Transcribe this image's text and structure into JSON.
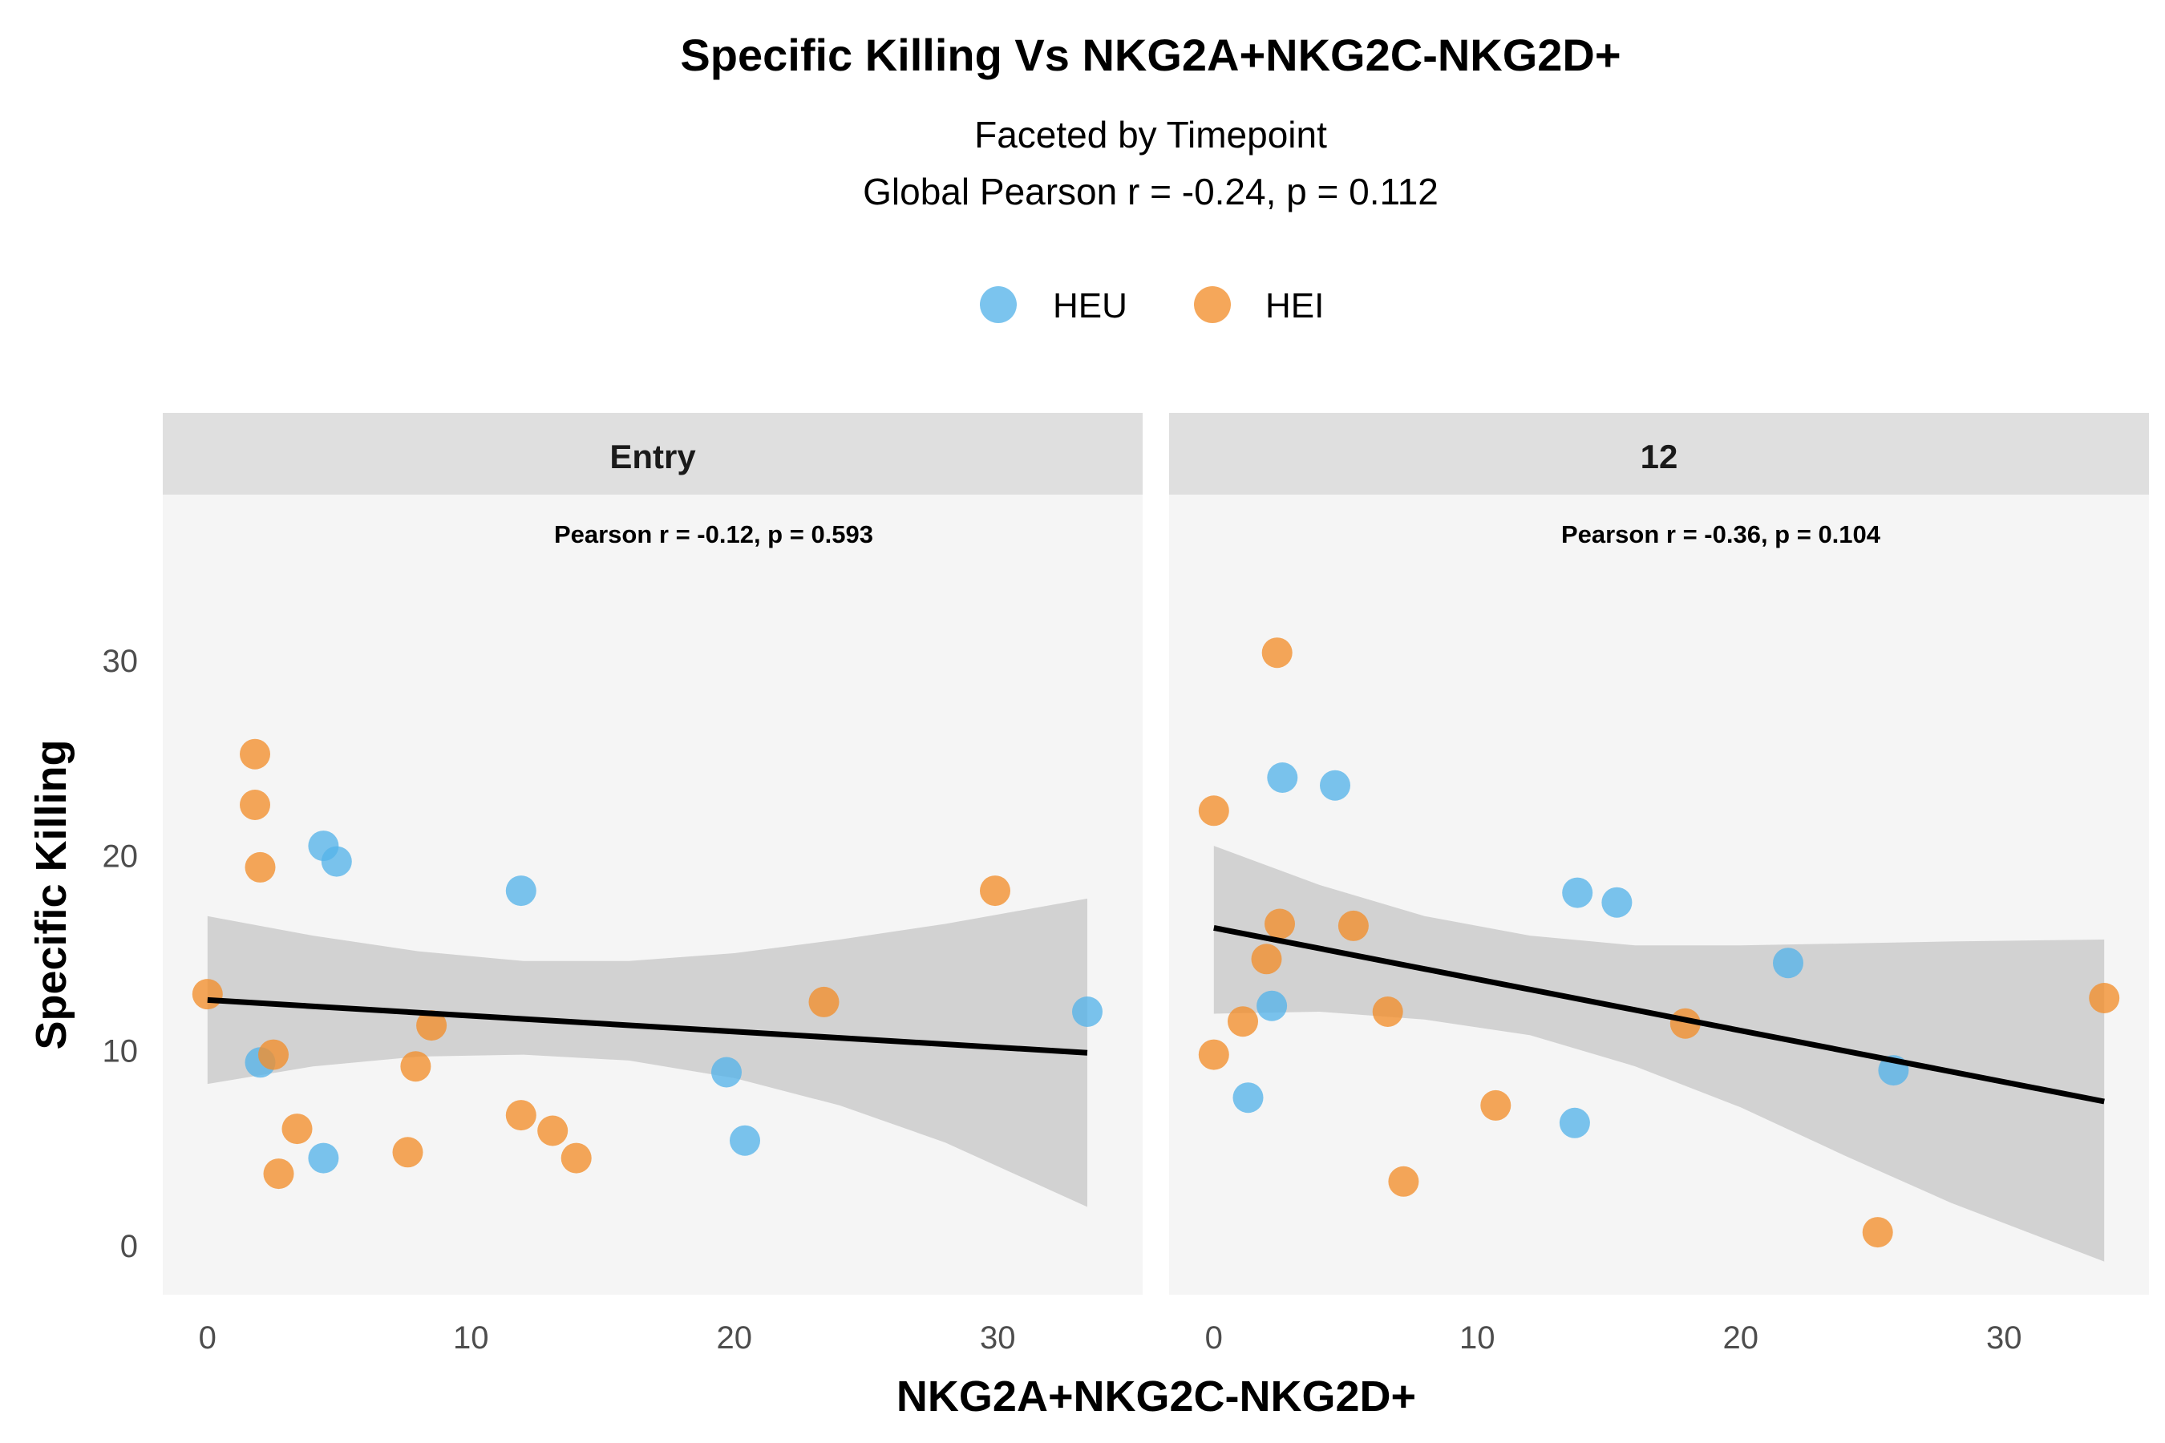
{
  "chart_data": {
    "type": "scatter",
    "title": "Specific Killing Vs NKG2A+NKG2C-NKG2D+",
    "subtitle_line1": "Faceted by Timepoint",
    "subtitle_line2": "Global Pearson r = -0.24, p = 0.112",
    "xlabel": "NKG2A+NKG2C-NKG2D+",
    "ylabel": "Specific Killing",
    "xlim": [
      -1.7,
      35.5
    ],
    "ylim": [
      -2.5,
      38.5
    ],
    "x_ticks": [
      0,
      10,
      20,
      30
    ],
    "y_ticks": [
      0,
      10,
      20,
      30
    ],
    "grid": false,
    "legend_position": "top",
    "legend": [
      {
        "name": "HEU",
        "color": "#56B4E9"
      },
      {
        "name": "HEI",
        "color": "#F28E2B"
      }
    ],
    "panels": [
      {
        "label": "Entry",
        "annotation": "Pearson r = -0.12, p = 0.593",
        "fit": {
          "x0": 0,
          "y0": 12.6,
          "x1": 33.4,
          "y1": 9.9
        },
        "ribbon": [
          {
            "x": 0,
            "lo": 8.3,
            "hi": 16.9
          },
          {
            "x": 4,
            "lo": 9.2,
            "hi": 15.9
          },
          {
            "x": 8,
            "lo": 9.7,
            "hi": 15.1
          },
          {
            "x": 12,
            "lo": 9.8,
            "hi": 14.6
          },
          {
            "x": 16,
            "lo": 9.5,
            "hi": 14.6
          },
          {
            "x": 20,
            "lo": 8.6,
            "hi": 15.0
          },
          {
            "x": 24,
            "lo": 7.2,
            "hi": 15.7
          },
          {
            "x": 28,
            "lo": 5.3,
            "hi": 16.5
          },
          {
            "x": 33.4,
            "lo": 2.0,
            "hi": 17.8
          }
        ],
        "series": [
          {
            "name": "HEU",
            "points": [
              {
                "x": 2.0,
                "y": 9.4
              },
              {
                "x": 4.4,
                "y": 20.5
              },
              {
                "x": 4.9,
                "y": 19.7
              },
              {
                "x": 4.4,
                "y": 4.5
              },
              {
                "x": 11.9,
                "y": 18.2
              },
              {
                "x": 19.7,
                "y": 8.9
              },
              {
                "x": 20.4,
                "y": 5.4
              },
              {
                "x": 33.4,
                "y": 12.0
              }
            ]
          },
          {
            "name": "HEI",
            "points": [
              {
                "x": 0.0,
                "y": 12.9
              },
              {
                "x": 1.8,
                "y": 25.2
              },
              {
                "x": 1.8,
                "y": 22.6
              },
              {
                "x": 2.0,
                "y": 19.4
              },
              {
                "x": 2.5,
                "y": 9.8
              },
              {
                "x": 2.7,
                "y": 3.7
              },
              {
                "x": 3.4,
                "y": 6.0
              },
              {
                "x": 7.6,
                "y": 4.8
              },
              {
                "x": 7.9,
                "y": 9.2
              },
              {
                "x": 8.5,
                "y": 11.3
              },
              {
                "x": 11.9,
                "y": 6.7
              },
              {
                "x": 13.1,
                "y": 5.9
              },
              {
                "x": 14.0,
                "y": 4.5
              },
              {
                "x": 23.4,
                "y": 12.5
              },
              {
                "x": 29.9,
                "y": 18.2
              }
            ]
          }
        ]
      },
      {
        "label": "12",
        "annotation": "Pearson r = -0.36, p = 0.104",
        "fit": {
          "x0": 0,
          "y0": 16.3,
          "x1": 33.8,
          "y1": 7.4
        },
        "ribbon": [
          {
            "x": 0,
            "lo": 11.9,
            "hi": 20.5
          },
          {
            "x": 4,
            "lo": 12.0,
            "hi": 18.5
          },
          {
            "x": 8,
            "lo": 11.6,
            "hi": 16.9
          },
          {
            "x": 12,
            "lo": 10.8,
            "hi": 15.9
          },
          {
            "x": 16,
            "lo": 9.2,
            "hi": 15.4
          },
          {
            "x": 20,
            "lo": 7.1,
            "hi": 15.4
          },
          {
            "x": 24,
            "lo": 4.6,
            "hi": 15.5
          },
          {
            "x": 28,
            "lo": 2.2,
            "hi": 15.6
          },
          {
            "x": 33.8,
            "lo": -0.8,
            "hi": 15.7
          }
        ],
        "series": [
          {
            "name": "HEU",
            "points": [
              {
                "x": 1.3,
                "y": 7.6
              },
              {
                "x": 2.2,
                "y": 12.3
              },
              {
                "x": 2.6,
                "y": 24.0
              },
              {
                "x": 4.6,
                "y": 23.6
              },
              {
                "x": 13.8,
                "y": 18.1
              },
              {
                "x": 15.3,
                "y": 17.6
              },
              {
                "x": 13.7,
                "y": 6.3
              },
              {
                "x": 21.8,
                "y": 14.5
              },
              {
                "x": 25.8,
                "y": 9.0
              }
            ]
          },
          {
            "name": "HEI",
            "points": [
              {
                "x": 0.0,
                "y": 22.3
              },
              {
                "x": 0.0,
                "y": 9.8
              },
              {
                "x": 1.1,
                "y": 11.5
              },
              {
                "x": 2.0,
                "y": 14.7
              },
              {
                "x": 2.4,
                "y": 30.4
              },
              {
                "x": 2.5,
                "y": 16.5
              },
              {
                "x": 5.3,
                "y": 16.4
              },
              {
                "x": 6.6,
                "y": 12.0
              },
              {
                "x": 7.2,
                "y": 3.3
              },
              {
                "x": 10.7,
                "y": 7.2
              },
              {
                "x": 17.9,
                "y": 11.4
              },
              {
                "x": 25.2,
                "y": 0.7
              },
              {
                "x": 33.8,
                "y": 12.7
              }
            ]
          }
        ]
      }
    ]
  }
}
